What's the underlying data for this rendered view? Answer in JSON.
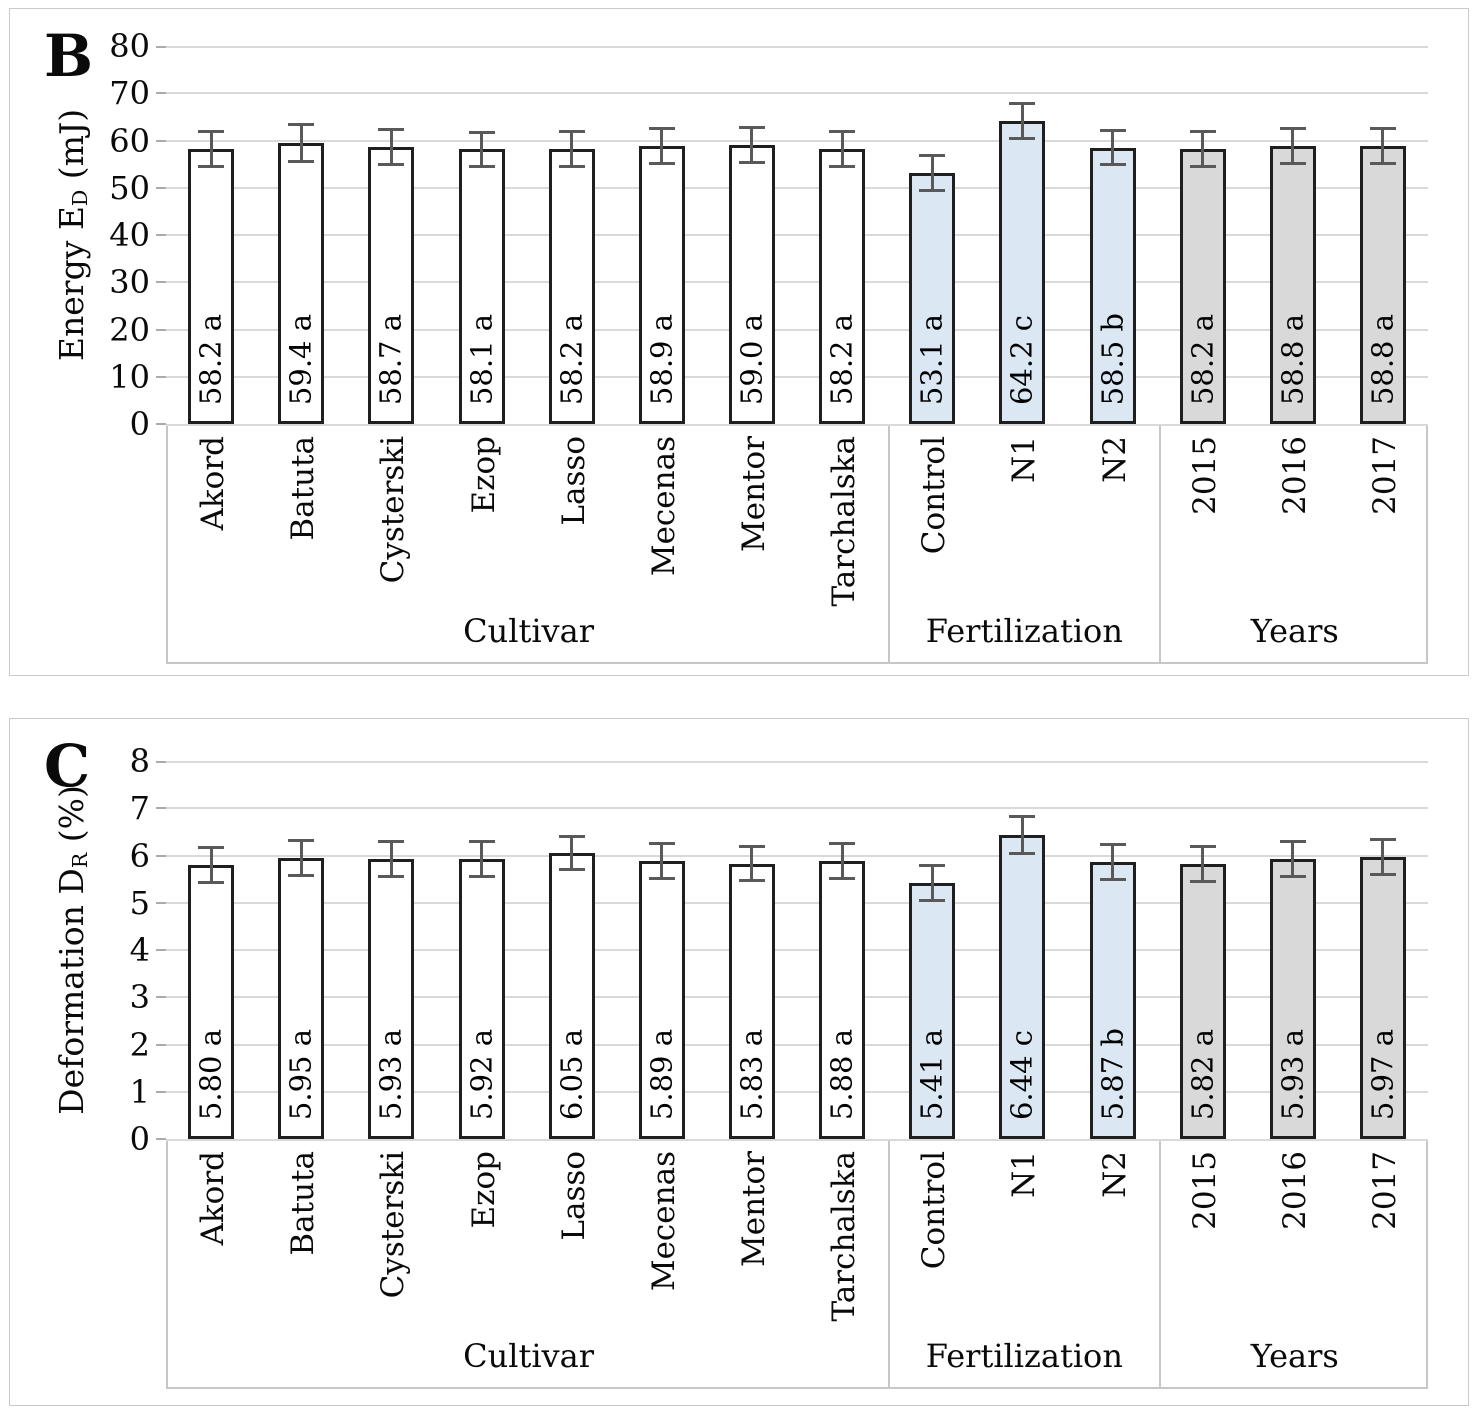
{
  "figure": {
    "panels": [
      {
        "panel_label": "B",
        "y_title": {
          "pre": "Energy E",
          "sub": "D",
          "post": " (mJ)"
        },
        "chart_data": {
          "type": "bar",
          "ylim": [
            0,
            80
          ],
          "yticks": [
            "0",
            "10",
            "20",
            "30",
            "40",
            "50",
            "60",
            "70",
            "80"
          ],
          "grid": true,
          "error_bars": true,
          "groups": [
            {
              "label": "Cultivar",
              "bar_color": "#ffffff",
              "categories": [
                "Akord",
                "Batuta",
                "Cysterski",
                "Ezop",
                "Lasso",
                "Mecenas",
                "Mentor",
                "Tarchalska"
              ],
              "values": [
                58.2,
                59.4,
                58.7,
                58.1,
                58.2,
                58.9,
                59.0,
                58.2
              ],
              "bar_labels": [
                "58.2 a",
                "59.4 a",
                "58.7 a",
                "58.1 a",
                "58.2 a",
                "58.9 a",
                "59.0 a",
                "58.2 a"
              ],
              "errors": [
                4.0,
                4.2,
                4.0,
                4.0,
                4.0,
                4.0,
                4.0,
                4.0
              ]
            },
            {
              "label": "Fertilization",
              "bar_color": "#dbe8f4",
              "categories": [
                "Control",
                "N1",
                "N2"
              ],
              "values": [
                53.1,
                64.2,
                58.5
              ],
              "bar_labels": [
                "53.1 a",
                "64.2 c",
                "58.5 b"
              ],
              "errors": [
                4.0,
                4.0,
                4.0
              ]
            },
            {
              "label": "Years",
              "bar_color": "#d9d9d9",
              "categories": [
                "2015",
                "2016",
                "2017"
              ],
              "values": [
                58.2,
                58.8,
                58.8
              ],
              "bar_labels": [
                "58.2 a",
                "58.8 a",
                "58.8 a"
              ],
              "errors": [
                4.0,
                4.0,
                4.0
              ]
            }
          ]
        }
      },
      {
        "panel_label": "C",
        "y_title": {
          "pre": "Deformation D",
          "sub": "R",
          "post": " (%)"
        },
        "chart_data": {
          "type": "bar",
          "ylim": [
            0,
            8
          ],
          "yticks": [
            "0",
            "1",
            "2",
            "3",
            "4",
            "5",
            "6",
            "7",
            "8"
          ],
          "grid": true,
          "error_bars": true,
          "groups": [
            {
              "label": "Cultivar",
              "bar_color": "#ffffff",
              "categories": [
                "Akord",
                "Batuta",
                "Cysterski",
                "Ezop",
                "Lasso",
                "Mecenas",
                "Mentor",
                "Tarchalska"
              ],
              "values": [
                5.8,
                5.95,
                5.93,
                5.92,
                6.05,
                5.89,
                5.83,
                5.88
              ],
              "bar_labels": [
                "5.80 a",
                "5.95 a",
                "5.93 a",
                "5.92 a",
                "6.05 a",
                "5.89 a",
                "5.83 a",
                "5.88 a"
              ],
              "errors": [
                0.4,
                0.4,
                0.4,
                0.4,
                0.38,
                0.4,
                0.4,
                0.4
              ]
            },
            {
              "label": "Fertilization",
              "bar_color": "#dbe8f4",
              "categories": [
                "Control",
                "N1",
                "N2"
              ],
              "values": [
                5.41,
                6.44,
                5.87
              ],
              "bar_labels": [
                "5.41 a",
                "6.44 c",
                "5.87 b"
              ],
              "errors": [
                0.4,
                0.42,
                0.4
              ]
            },
            {
              "label": "Years",
              "bar_color": "#d9d9d9",
              "categories": [
                "2015",
                "2016",
                "2017"
              ],
              "values": [
                5.82,
                5.93,
                5.97
              ],
              "bar_labels": [
                "5.82 a",
                "5.93 a",
                "5.97 a"
              ],
              "errors": [
                0.4,
                0.4,
                0.4
              ]
            }
          ]
        }
      }
    ]
  },
  "colors": {
    "bar_white": "#ffffff",
    "bar_blue": "#dbe8f4",
    "bar_gray": "#d9d9d9",
    "bar_border": "#1f1f1f",
    "error_bar": "#595959",
    "gridline": "#d9d9d9",
    "axis_box_line": "#c7c7c7",
    "panel_border": "#cacaca",
    "text": "#0a0a0a"
  }
}
